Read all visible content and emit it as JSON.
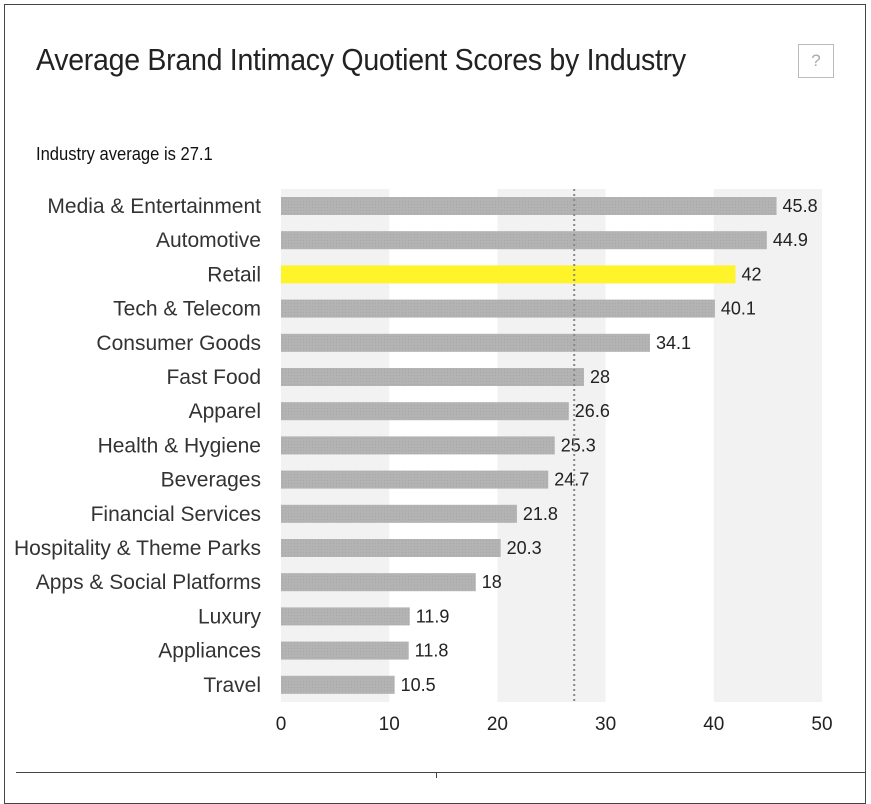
{
  "header": {
    "title": "Average Brand Intimacy Quotient Scores by Industry",
    "help_label": "?"
  },
  "chart_data": {
    "type": "bar",
    "orientation": "horizontal",
    "title": "Average Brand Intimacy Quotient Scores by Industry",
    "subtitle": "Industry average is 27.1",
    "reference_line": {
      "value": 27.1,
      "style": "dotted"
    },
    "categories": [
      "Media & Entertainment",
      "Automotive",
      "Retail",
      "Tech & Telecom",
      "Consumer Goods",
      "Fast Food",
      "Apparel",
      "Health & Hygiene",
      "Beverages",
      "Financial Services",
      "Hospitality & Theme Parks",
      "Apps & Social Platforms",
      "Luxury",
      "Appliances",
      "Travel"
    ],
    "values": [
      45.8,
      44.9,
      42,
      40.1,
      34.1,
      28,
      26.6,
      25.3,
      24.7,
      21.8,
      20.3,
      18,
      11.9,
      11.8,
      10.5
    ],
    "value_labels": [
      "45.8",
      "44.9",
      "42",
      "40.1",
      "34.1",
      "28",
      "26.6",
      "25.3",
      "24.7",
      "21.8",
      "20.3",
      "18",
      "11.9",
      "11.8",
      "10.5"
    ],
    "highlight_category": "Retail",
    "colors": {
      "bar": "#b3b3b3",
      "highlight": "#fff42a",
      "band": "#f2f2f2",
      "reference": "#888888"
    },
    "xlim": [
      0,
      50
    ],
    "xticks": [
      "0",
      "10",
      "20",
      "30",
      "40",
      "50"
    ],
    "grid": "alternating-bands",
    "legend": "none"
  }
}
